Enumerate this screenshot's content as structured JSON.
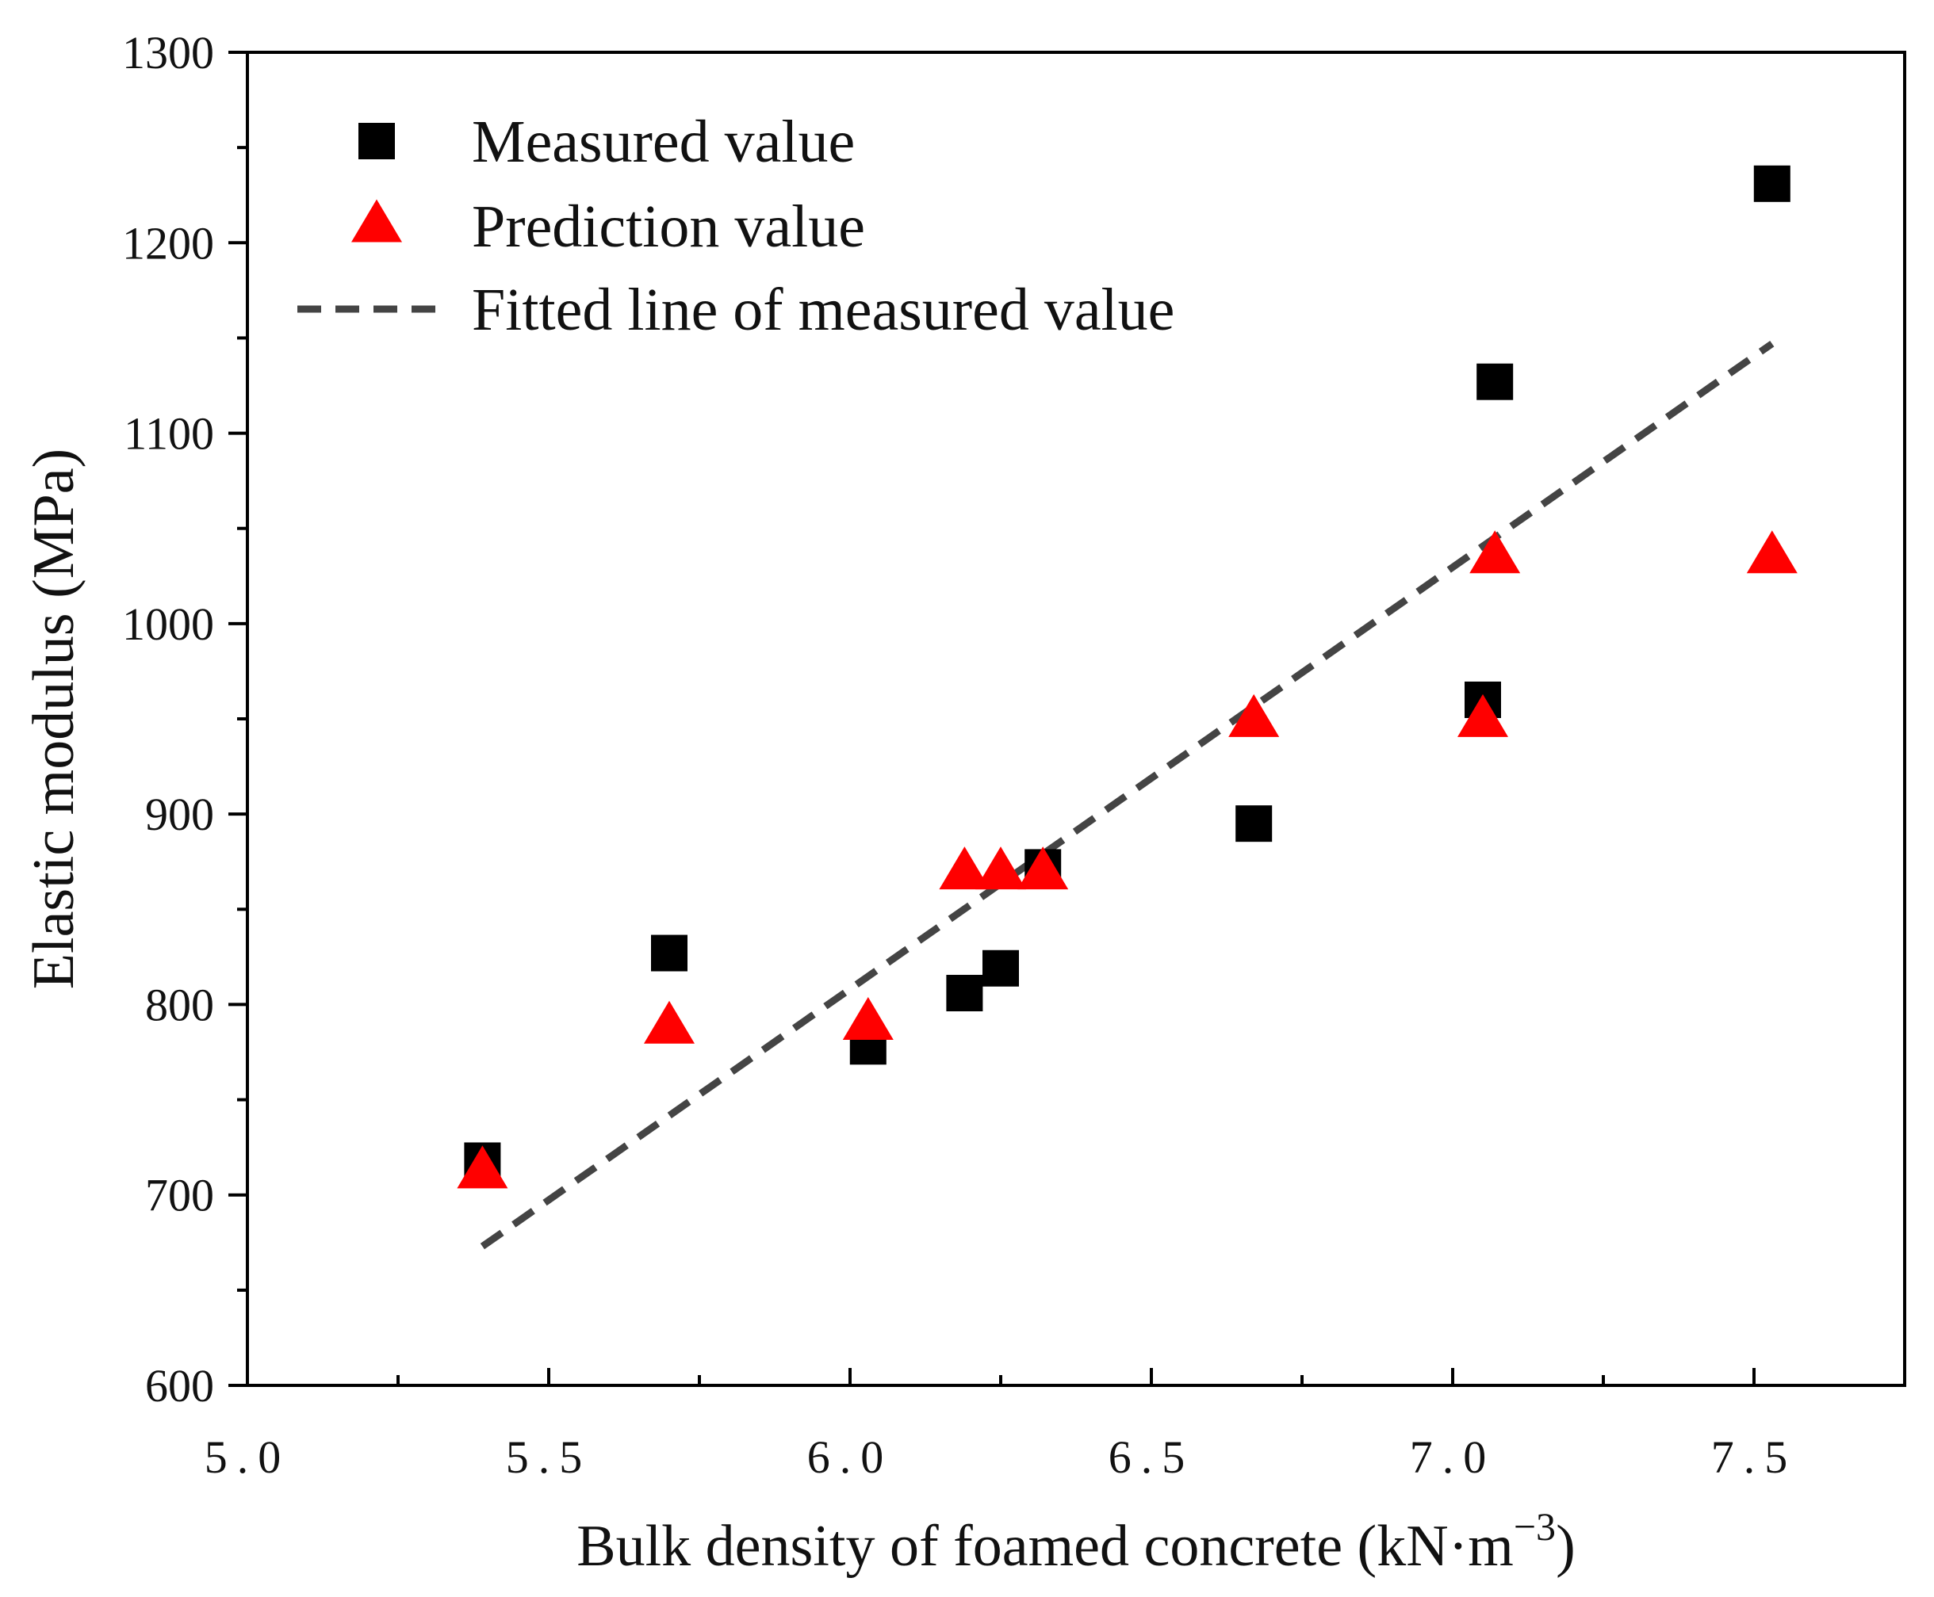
{
  "chart_data": {
    "type": "scatter",
    "title": "",
    "xlabel": "Bulk density of foamed concrete (kN·m",
    "xlabel_superscript": "−3",
    "xlabel_suffix": ")",
    "ylabel": "Elastic modulus (MPa)",
    "xlim": [
      5.0,
      7.75
    ],
    "ylim": [
      600,
      1300
    ],
    "x_ticks": [
      5.0,
      5.5,
      6.0,
      6.5,
      7.0,
      7.5
    ],
    "x_tick_labels": [
      "5.0",
      "5.5",
      "6.0",
      "6.5",
      "7.0",
      "7.5"
    ],
    "y_ticks": [
      600,
      700,
      800,
      900,
      1000,
      1100,
      1200,
      1300
    ],
    "y_tick_labels": [
      "600",
      "700",
      "800",
      "900",
      "1000",
      "1100",
      "1200",
      "1300"
    ],
    "grid": false,
    "legend_position": "top-left",
    "series": [
      {
        "name": "Measured value",
        "marker": "square",
        "color": "#000000",
        "points": [
          {
            "x": 5.39,
            "y": 718
          },
          {
            "x": 5.7,
            "y": 827
          },
          {
            "x": 6.03,
            "y": 778
          },
          {
            "x": 6.19,
            "y": 806
          },
          {
            "x": 6.25,
            "y": 819
          },
          {
            "x": 6.32,
            "y": 872
          },
          {
            "x": 6.67,
            "y": 895
          },
          {
            "x": 7.05,
            "y": 960
          },
          {
            "x": 7.07,
            "y": 1127
          },
          {
            "x": 7.53,
            "y": 1231
          }
        ]
      },
      {
        "name": "Prediction value",
        "marker": "triangle",
        "color": "#ff0000",
        "points": [
          {
            "x": 5.39,
            "y": 712
          },
          {
            "x": 5.7,
            "y": 788
          },
          {
            "x": 6.03,
            "y": 790
          },
          {
            "x": 6.19,
            "y": 869
          },
          {
            "x": 6.25,
            "y": 869
          },
          {
            "x": 6.32,
            "y": 869
          },
          {
            "x": 6.67,
            "y": 949
          },
          {
            "x": 7.05,
            "y": 949
          },
          {
            "x": 7.07,
            "y": 1035
          },
          {
            "x": 7.53,
            "y": 1035
          }
        ]
      },
      {
        "name": "Fitted line of measured value",
        "marker": "dashed-line",
        "color": "#444444",
        "points": [
          {
            "x": 5.39,
            "y": 673
          },
          {
            "x": 7.53,
            "y": 1147
          }
        ]
      }
    ]
  }
}
